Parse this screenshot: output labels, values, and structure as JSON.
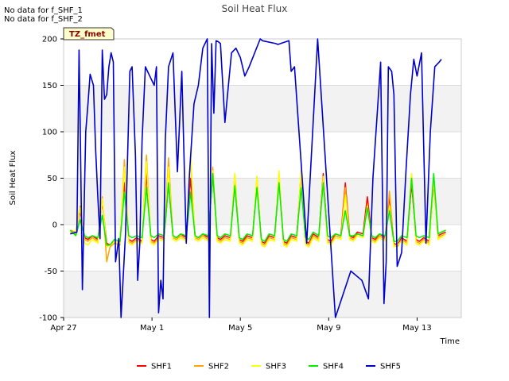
{
  "nodata_lines": [
    "No data for f_SHF_1",
    "No data for f_SHF_2"
  ],
  "site_label": "TZ_fmet",
  "chart_data": {
    "type": "line",
    "title": "Soil Heat Flux",
    "xlabel": "Time",
    "ylabel": "Soil Heat Flux",
    "xlim": [
      0,
      18
    ],
    "ylim": [
      -100,
      200
    ],
    "yticks": [
      -100,
      -50,
      0,
      50,
      100,
      150,
      200
    ],
    "xticks": [
      {
        "value": 0,
        "label": "Apr 27"
      },
      {
        "value": 4,
        "label": "May 1"
      },
      {
        "value": 8,
        "label": "May 5"
      },
      {
        "value": 12,
        "label": "May 9"
      },
      {
        "value": 16,
        "label": "May 13"
      }
    ],
    "bands": [
      [
        -100,
        -50
      ],
      [
        0,
        50
      ],
      [
        100,
        150
      ]
    ],
    "series": [
      {
        "name": "SHF1",
        "color": "#ff0000",
        "x": [
          0.3,
          0.55,
          0.75,
          0.95,
          1.1,
          1.3,
          1.55,
          1.75,
          1.95,
          2.1,
          2.3,
          2.55,
          2.75,
          2.95,
          3.1,
          3.3,
          3.55,
          3.75,
          3.95,
          4.1,
          4.3,
          4.55,
          4.75,
          4.95,
          5.1,
          5.3,
          5.55,
          5.75,
          5.95,
          6.1,
          6.3,
          6.55,
          6.75,
          6.95,
          7.1,
          7.3,
          7.55,
          7.75,
          7.95,
          8.1,
          8.3,
          8.55,
          8.75,
          8.95,
          9.1,
          9.3,
          9.55,
          9.75,
          9.95,
          10.1,
          10.3,
          10.55,
          10.75,
          10.95,
          11.1,
          11.3,
          11.55,
          11.75,
          11.95,
          12.1,
          12.3,
          12.55,
          12.75,
          12.95,
          13.1,
          13.3,
          13.55,
          13.75,
          13.95,
          14.1,
          14.3,
          14.55,
          14.75,
          14.95,
          15.1,
          15.3,
          15.55,
          15.75,
          15.95,
          16.1,
          16.3,
          16.55,
          16.75,
          16.95,
          17.1,
          17.3
        ],
        "y": [
          -8,
          -10,
          15,
          -14,
          -16,
          -12,
          -16,
          25,
          -20,
          -22,
          -18,
          -20,
          45,
          -16,
          -18,
          -14,
          -18,
          55,
          -16,
          -18,
          -12,
          -14,
          45,
          -12,
          -14,
          -10,
          -14,
          50,
          -12,
          -14,
          -10,
          -14,
          55,
          -14,
          -16,
          -12,
          -14,
          45,
          -16,
          -18,
          -12,
          -14,
          48,
          -18,
          -20,
          -12,
          -14,
          50,
          -18,
          -20,
          -12,
          -14,
          55,
          -18,
          -20,
          -10,
          -14,
          55,
          -16,
          -18,
          -10,
          -12,
          45,
          -12,
          -14,
          -8,
          -10,
          30,
          -14,
          -16,
          -10,
          -14,
          30,
          -20,
          -22,
          -14,
          -18,
          45,
          -16,
          -18,
          -14,
          -18,
          45,
          -12,
          -10,
          -8
        ]
      },
      {
        "name": "SHF2",
        "color": "#ffa500",
        "x": [
          0.3,
          0.55,
          0.75,
          0.95,
          1.1,
          1.3,
          1.55,
          1.75,
          1.95,
          2.1,
          2.3,
          2.55,
          2.75,
          2.95,
          3.1,
          3.3,
          3.55,
          3.75,
          3.95,
          4.1,
          4.3,
          4.55,
          4.75,
          4.95,
          5.1,
          5.3,
          5.55,
          5.75,
          5.95,
          6.1,
          6.3,
          6.55,
          6.75,
          6.95,
          7.1,
          7.3,
          7.55,
          7.75,
          7.95,
          8.1,
          8.3,
          8.55,
          8.75,
          8.95,
          9.1,
          9.3,
          9.55,
          9.75,
          9.95,
          10.1,
          10.3,
          10.55,
          10.75,
          10.95,
          11.1,
          11.3,
          11.55,
          11.75,
          11.95,
          12.1,
          12.3,
          12.55,
          12.75,
          12.95,
          13.1,
          13.3,
          13.55,
          13.75,
          13.95,
          14.1,
          14.3,
          14.55,
          14.75,
          14.95,
          15.1,
          15.3,
          15.55,
          15.75,
          15.95,
          16.1,
          16.3,
          16.55,
          16.75,
          16.95,
          17.1,
          17.3
        ],
        "y": [
          -6,
          -8,
          20,
          -16,
          -18,
          -14,
          -18,
          30,
          -40,
          -24,
          -20,
          -22,
          70,
          -18,
          -20,
          -16,
          -20,
          75,
          -18,
          -20,
          -14,
          -16,
          72,
          -14,
          -16,
          -12,
          -16,
          70,
          -14,
          -16,
          -12,
          -16,
          62,
          -16,
          -18,
          -14,
          -16,
          55,
          -18,
          -20,
          -14,
          -16,
          52,
          -20,
          -22,
          -14,
          -16,
          55,
          -20,
          -22,
          -14,
          -16,
          58,
          -20,
          -22,
          -12,
          -16,
          50,
          -18,
          -20,
          -12,
          -14,
          40,
          -14,
          -16,
          -10,
          -12,
          22,
          -16,
          -18,
          -12,
          -16,
          36,
          -22,
          -24,
          -16,
          -20,
          55,
          -18,
          -20,
          -16,
          -20,
          52,
          -14,
          -12,
          -10
        ]
      },
      {
        "name": "SHF3",
        "color": "#ffff00",
        "x": [
          0.3,
          0.55,
          0.75,
          0.95,
          1.1,
          1.3,
          1.55,
          1.75,
          1.95,
          2.1,
          2.3,
          2.55,
          2.75,
          2.95,
          3.1,
          3.3,
          3.55,
          3.75,
          3.95,
          4.1,
          4.3,
          4.55,
          4.75,
          4.95,
          5.1,
          5.3,
          5.55,
          5.75,
          5.95,
          6.1,
          6.3,
          6.55,
          6.75,
          6.95,
          7.1,
          7.3,
          7.55,
          7.75,
          7.95,
          8.1,
          8.3,
          8.55,
          8.75,
          8.95,
          9.1,
          9.3,
          9.55,
          9.75,
          9.95,
          10.1,
          10.3,
          10.55,
          10.75,
          10.95,
          11.1,
          11.3,
          11.55,
          11.75,
          11.95,
          12.1,
          12.3,
          12.55,
          12.75,
          12.95,
          13.1,
          13.3,
          13.55,
          13.75,
          13.95,
          14.1,
          14.3,
          14.55,
          14.75,
          14.95,
          15.1,
          15.3,
          15.55,
          15.75,
          15.95,
          16.1,
          16.3,
          16.55,
          16.75,
          16.95,
          17.1,
          17.3
        ],
        "y": [
          -8,
          -10,
          18,
          -20,
          -22,
          -16,
          -20,
          28,
          -24,
          -22,
          -18,
          -20,
          62,
          -20,
          -22,
          -18,
          -20,
          68,
          -20,
          -22,
          -16,
          -18,
          62,
          -16,
          -18,
          -14,
          -18,
          75,
          -16,
          -18,
          -14,
          -18,
          58,
          -18,
          -20,
          -16,
          -18,
          55,
          -20,
          -22,
          -16,
          -18,
          52,
          -22,
          -24,
          -16,
          -18,
          58,
          -22,
          -24,
          -16,
          -18,
          57,
          -22,
          -24,
          -14,
          -18,
          52,
          -20,
          -22,
          -14,
          -16,
          32,
          -16,
          -18,
          -12,
          -14,
          20,
          -18,
          -20,
          -14,
          -18,
          20,
          -24,
          -22,
          -18,
          -22,
          55,
          -20,
          -22,
          -18,
          -22,
          48,
          -16,
          -14,
          -10
        ]
      },
      {
        "name": "SHF4",
        "color": "#00ee00",
        "x": [
          0.3,
          0.55,
          0.75,
          0.95,
          1.1,
          1.3,
          1.55,
          1.75,
          1.95,
          2.1,
          2.3,
          2.55,
          2.75,
          2.95,
          3.1,
          3.3,
          3.55,
          3.75,
          3.95,
          4.1,
          4.3,
          4.55,
          4.75,
          4.95,
          5.1,
          5.3,
          5.55,
          5.75,
          5.95,
          6.1,
          6.3,
          6.55,
          6.75,
          6.95,
          7.1,
          7.3,
          7.55,
          7.75,
          7.95,
          8.1,
          8.3,
          8.55,
          8.75,
          8.95,
          9.1,
          9.3,
          9.55,
          9.75,
          9.95,
          10.1,
          10.3,
          10.55,
          10.75,
          10.95,
          11.1,
          11.3,
          11.55,
          11.75,
          11.95,
          12.1,
          12.3,
          12.55,
          12.75,
          12.95,
          13.1,
          13.3,
          13.55,
          13.75,
          13.95,
          14.1,
          14.3,
          14.55,
          14.75,
          14.95,
          15.1,
          15.3,
          15.55,
          15.75,
          15.95,
          16.1,
          16.3,
          16.55,
          16.75,
          16.95,
          17.1,
          17.3
        ],
        "y": [
          -6,
          -12,
          5,
          -12,
          -14,
          -12,
          -14,
          10,
          -22,
          -22,
          -16,
          -18,
          35,
          -12,
          -14,
          -12,
          -14,
          40,
          -12,
          -14,
          -10,
          -12,
          45,
          -12,
          -14,
          -10,
          -12,
          35,
          -12,
          -14,
          -10,
          -12,
          55,
          -12,
          -14,
          -10,
          -12,
          42,
          -14,
          -16,
          -10,
          -12,
          40,
          -16,
          -18,
          -10,
          -12,
          45,
          -16,
          -18,
          -10,
          -12,
          40,
          -14,
          -16,
          -8,
          -12,
          45,
          -12,
          -14,
          -10,
          -12,
          15,
          -12,
          -12,
          -10,
          -12,
          18,
          -12,
          -14,
          -10,
          -12,
          15,
          -18,
          -18,
          -12,
          -14,
          50,
          -12,
          -14,
          -12,
          -14,
          55,
          -10,
          -8,
          -6
        ]
      },
      {
        "name": "SHF5",
        "color": "#0000cc",
        "x": [
          0.3,
          0.6,
          0.7,
          0.75,
          0.85,
          1.0,
          1.1,
          1.2,
          1.35,
          1.45,
          1.55,
          1.65,
          1.75,
          1.85,
          1.95,
          2.05,
          2.15,
          2.25,
          2.35,
          2.5,
          2.6,
          2.8,
          3.0,
          3.1,
          3.25,
          3.35,
          3.45,
          3.55,
          3.7,
          3.9,
          4.1,
          4.2,
          4.3,
          4.4,
          4.5,
          4.6,
          4.75,
          4.95,
          5.15,
          5.35,
          5.55,
          5.7,
          5.9,
          6.1,
          6.3,
          6.5,
          6.6,
          6.7,
          6.8,
          6.9,
          7.0,
          7.1,
          7.3,
          7.5,
          7.6,
          7.8,
          7.9,
          8.0,
          8.2,
          8.4,
          8.9,
          9.0,
          9.6,
          9.7,
          10.2,
          10.3,
          10.45,
          11.0,
          11.5,
          12.3,
          13.0,
          13.5,
          13.8,
          14.0,
          14.35,
          14.5,
          14.6,
          14.7,
          14.85,
          14.95,
          15.1,
          15.3,
          15.5,
          15.7,
          15.85,
          16.0,
          16.2,
          16.4,
          16.6,
          16.8,
          17.0,
          17.1
        ],
        "y": [
          -10,
          -8,
          188,
          110,
          -70,
          100,
          130,
          162,
          150,
          80,
          28,
          -15,
          188,
          135,
          140,
          170,
          185,
          175,
          -40,
          -15,
          -100,
          -10,
          165,
          170,
          75,
          -60,
          -20,
          90,
          170,
          160,
          150,
          170,
          -95,
          -60,
          -80,
          90,
          170,
          185,
          57,
          165,
          -20,
          55,
          130,
          150,
          190,
          200,
          -100,
          195,
          120,
          198,
          197,
          195,
          110,
          160,
          185,
          190,
          185,
          180,
          160,
          170,
          200,
          198,
          195,
          194,
          198,
          165,
          170,
          -20,
          200,
          -100,
          -50,
          -60,
          -80,
          50,
          175,
          -85,
          -40,
          170,
          165,
          140,
          -45,
          -30,
          60,
          140,
          178,
          160,
          185,
          -20,
          100,
          170,
          175,
          178
        ]
      }
    ]
  },
  "legend": [
    "SHF1",
    "SHF2",
    "SHF3",
    "SHF4",
    "SHF5"
  ]
}
